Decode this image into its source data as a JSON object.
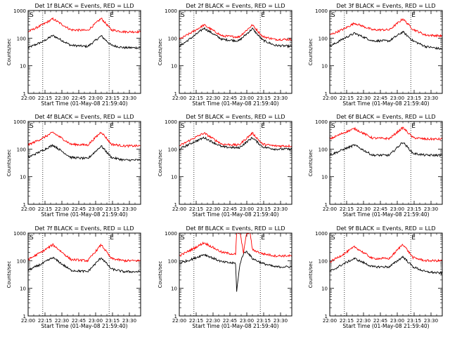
{
  "page": {
    "background": "#ffffff",
    "frame_color": "#000000"
  },
  "colors": {
    "events": "#000000",
    "lld": "#ff0000"
  },
  "shared": {
    "xlabel": "Start Time (01-May-08 21:59:40)",
    "ylabel": "Counts/sec",
    "x_ticks": [
      "22:00",
      "22:15",
      "22:30",
      "22:45",
      "23:00",
      "23:15",
      "23:30"
    ],
    "y_ticks": [
      "1",
      "10",
      "100",
      "1000"
    ],
    "xlim": [
      "22:00",
      "23:40"
    ],
    "ylim": [
      1,
      1000
    ],
    "y_scale": "log",
    "markers": {
      "start_label": "S",
      "end_label": "E",
      "dotted_lines_at": [
        "22:13",
        "23:12"
      ]
    }
  },
  "chart_data": [
    {
      "type": "line",
      "title": "Det 1f BLACK = Events, RED = LLD",
      "series": [
        {
          "name": "Events",
          "color": "#000000",
          "x": [
            "22:00",
            "22:13",
            "22:22",
            "22:38",
            "22:53",
            "23:05",
            "23:14",
            "23:25",
            "23:40"
          ],
          "values": [
            45,
            75,
            125,
            55,
            50,
            120,
            55,
            45,
            45
          ]
        },
        {
          "name": "LLD",
          "color": "#ff0000",
          "x": [
            "22:00",
            "22:13",
            "22:22",
            "22:38",
            "22:53",
            "23:05",
            "23:14",
            "23:25",
            "23:40"
          ],
          "values": [
            170,
            310,
            500,
            200,
            190,
            520,
            200,
            170,
            170
          ]
        }
      ]
    },
    {
      "type": "line",
      "title": "Det 2f BLACK = Events, RED = LLD",
      "series": [
        {
          "name": "Events",
          "color": "#000000",
          "x": [
            "22:00",
            "22:13",
            "22:22",
            "22:38",
            "22:53",
            "23:05",
            "23:14",
            "23:25",
            "23:40"
          ],
          "values": [
            50,
            120,
            230,
            90,
            80,
            220,
            85,
            55,
            50
          ]
        },
        {
          "name": "LLD",
          "color": "#ff0000",
          "x": [
            "22:00",
            "22:13",
            "22:22",
            "22:38",
            "22:53",
            "23:05",
            "23:14",
            "23:25",
            "23:40"
          ],
          "values": [
            90,
            180,
            300,
            120,
            110,
            300,
            115,
            90,
            90
          ]
        }
      ]
    },
    {
      "type": "line",
      "title": "Det 3f BLACK = Events, RED = LLD",
      "series": [
        {
          "name": "Events",
          "color": "#000000",
          "x": [
            "22:00",
            "22:13",
            "22:22",
            "22:38",
            "22:53",
            "23:05",
            "23:14",
            "23:25",
            "23:40"
          ],
          "values": [
            50,
            100,
            150,
            80,
            80,
            170,
            80,
            50,
            40
          ]
        },
        {
          "name": "LLD",
          "color": "#ff0000",
          "x": [
            "22:00",
            "22:13",
            "22:22",
            "22:38",
            "22:53",
            "23:05",
            "23:14",
            "23:25",
            "23:40"
          ],
          "values": [
            130,
            220,
            350,
            200,
            200,
            500,
            210,
            130,
            120
          ]
        }
      ]
    },
    {
      "type": "line",
      "title": "Det 4f BLACK = Events, RED = LLD",
      "series": [
        {
          "name": "Events",
          "color": "#000000",
          "x": [
            "22:00",
            "22:13",
            "22:22",
            "22:38",
            "22:53",
            "23:05",
            "23:14",
            "23:25",
            "23:40"
          ],
          "values": [
            50,
            90,
            140,
            50,
            45,
            130,
            50,
            40,
            40
          ]
        },
        {
          "name": "LLD",
          "color": "#ff0000",
          "x": [
            "22:00",
            "22:13",
            "22:22",
            "22:38",
            "22:53",
            "23:05",
            "23:14",
            "23:25",
            "23:40"
          ],
          "values": [
            140,
            250,
            400,
            150,
            140,
            420,
            150,
            130,
            130
          ]
        }
      ]
    },
    {
      "type": "line",
      "title": "Det 5f BLACK = Events, RED = LLD",
      "series": [
        {
          "name": "Events",
          "color": "#000000",
          "x": [
            "22:00",
            "22:13",
            "22:22",
            "22:38",
            "22:53",
            "23:05",
            "23:14",
            "23:25",
            "23:40"
          ],
          "values": [
            100,
            180,
            260,
            120,
            110,
            260,
            120,
            100,
            100
          ]
        },
        {
          "name": "LLD",
          "color": "#ff0000",
          "x": [
            "22:00",
            "22:13",
            "22:22",
            "22:38",
            "22:53",
            "23:05",
            "23:14",
            "23:25",
            "23:40"
          ],
          "values": [
            130,
            250,
            380,
            150,
            140,
            380,
            150,
            130,
            130
          ]
        }
      ]
    },
    {
      "type": "line",
      "title": "Det 6f BLACK = Events, RED = LLD",
      "series": [
        {
          "name": "Events",
          "color": "#000000",
          "x": [
            "22:00",
            "22:13",
            "22:22",
            "22:38",
            "22:53",
            "23:05",
            "23:14",
            "23:25",
            "23:40"
          ],
          "values": [
            60,
            100,
            140,
            60,
            60,
            180,
            70,
            60,
            60
          ]
        },
        {
          "name": "LLD",
          "color": "#ff0000",
          "x": [
            "22:00",
            "22:13",
            "22:22",
            "22:38",
            "22:53",
            "23:05",
            "23:14",
            "23:25",
            "23:40"
          ],
          "values": [
            230,
            400,
            550,
            250,
            240,
            600,
            260,
            230,
            230
          ]
        }
      ]
    },
    {
      "type": "line",
      "title": "Det 7f BLACK = Events, RED = LLD",
      "series": [
        {
          "name": "Events",
          "color": "#000000",
          "x": [
            "22:00",
            "22:13",
            "22:22",
            "22:38",
            "22:53",
            "23:05",
            "23:14",
            "23:25",
            "23:40"
          ],
          "values": [
            45,
            80,
            130,
            45,
            40,
            130,
            50,
            40,
            40
          ]
        },
        {
          "name": "LLD",
          "color": "#ff0000",
          "x": [
            "22:00",
            "22:13",
            "22:22",
            "22:38",
            "22:53",
            "23:05",
            "23:14",
            "23:25",
            "23:40"
          ],
          "values": [
            110,
            220,
            380,
            110,
            100,
            380,
            120,
            100,
            100
          ]
        }
      ]
    },
    {
      "type": "line",
      "title": "Det 8f BLACK = Events, RED = LLD",
      "series": [
        {
          "name": "Events",
          "color": "#000000",
          "x": [
            "22:00",
            "22:13",
            "22:22",
            "22:38",
            "22:50",
            "22:51",
            "22:54",
            "22:57",
            "23:00",
            "23:05",
            "23:14",
            "23:25",
            "23:40"
          ],
          "values": [
            80,
            120,
            170,
            90,
            80,
            8,
            80,
            180,
            220,
            120,
            80,
            60,
            60
          ]
        },
        {
          "name": "LLD",
          "color": "#ff0000",
          "x": [
            "22:00",
            "22:13",
            "22:22",
            "22:38",
            "22:50",
            "22:51",
            "22:54",
            "22:57",
            "22:58",
            "23:00",
            "23:03",
            "23:05",
            "23:14",
            "23:25",
            "23:40"
          ],
          "values": [
            150,
            280,
            450,
            200,
            170,
            1000,
            1000,
            200,
            350,
            1000,
            1000,
            250,
            180,
            150,
            150
          ]
        }
      ]
    },
    {
      "type": "line",
      "title": "Det 9f BLACK = Events, RED = LLD",
      "series": [
        {
          "name": "Events",
          "color": "#000000",
          "x": [
            "22:00",
            "22:13",
            "22:22",
            "22:38",
            "22:53",
            "23:05",
            "23:14",
            "23:25",
            "23:40"
          ],
          "values": [
            40,
            80,
            120,
            60,
            60,
            140,
            60,
            40,
            35
          ]
        },
        {
          "name": "LLD",
          "color": "#ff0000",
          "x": [
            "22:00",
            "22:13",
            "22:22",
            "22:38",
            "22:53",
            "23:05",
            "23:14",
            "23:25",
            "23:40"
          ],
          "values": [
            90,
            180,
            320,
            120,
            120,
            400,
            130,
            100,
            100
          ]
        }
      ]
    }
  ]
}
